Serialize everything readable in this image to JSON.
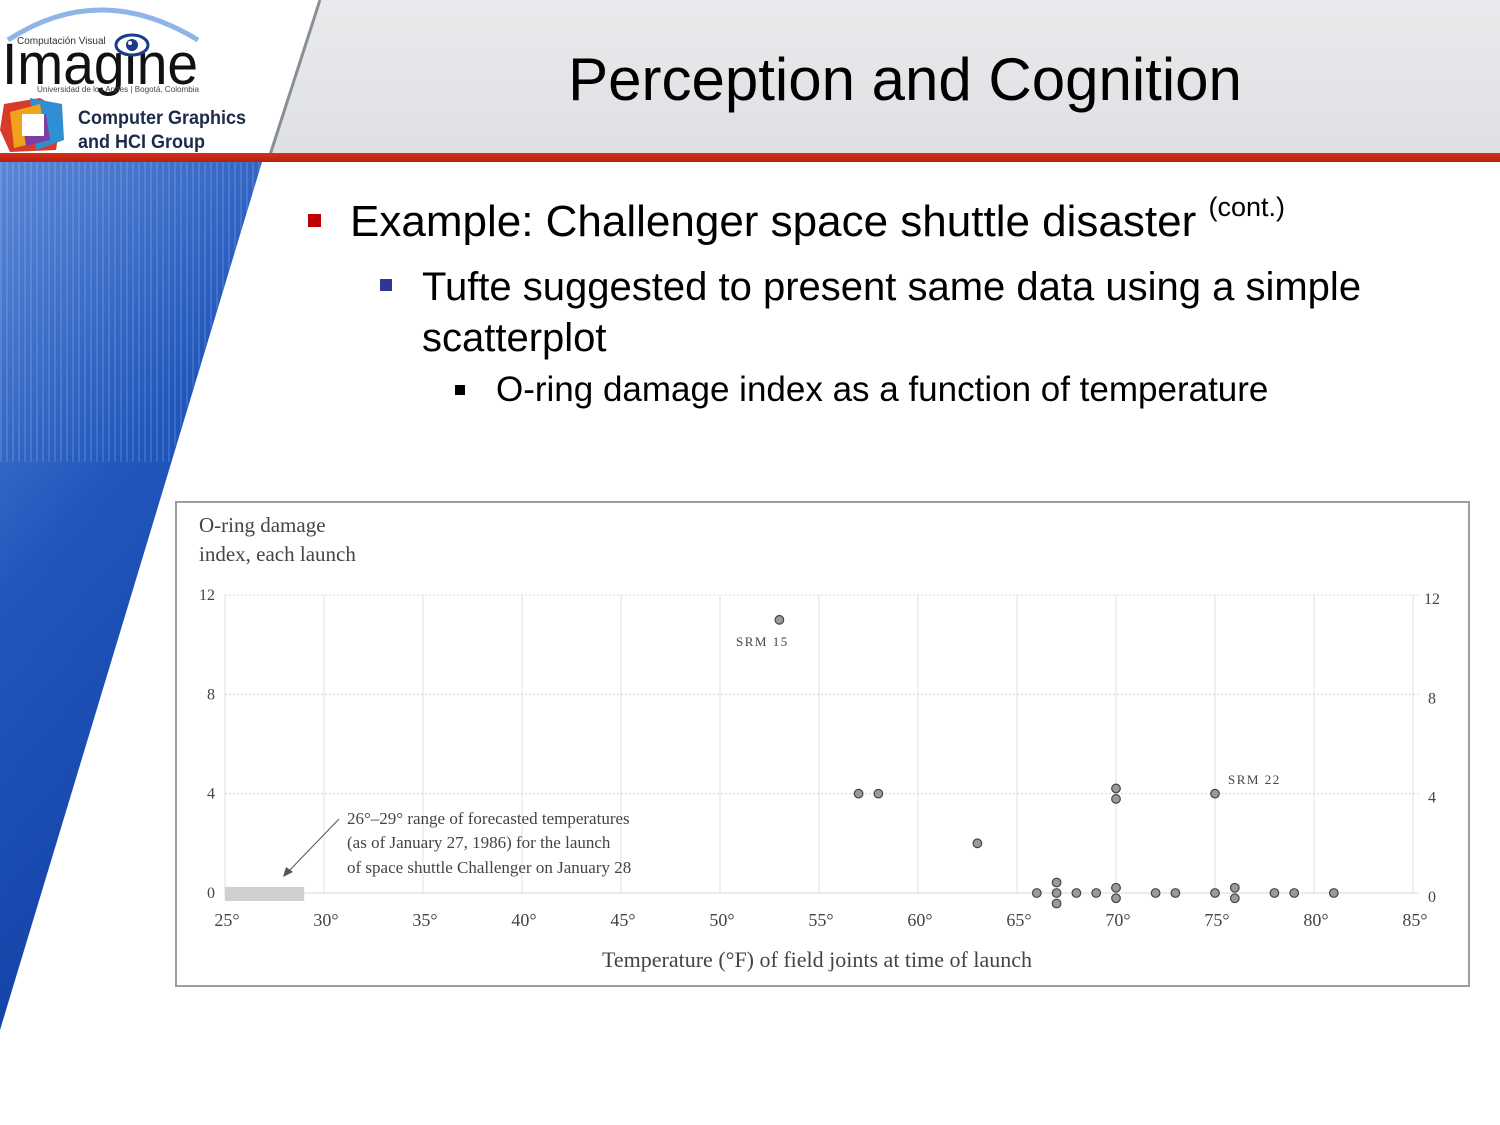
{
  "header": {
    "title": "Perception and Cognition",
    "logo": {
      "tagline": "Computación Visual",
      "wordmark": "Imagine",
      "affiliation": "Universidad de los Andes | Bogotá, Colombia",
      "group_line1": "Computer Graphics",
      "group_line2": "and HCI Group"
    }
  },
  "bullets": {
    "level1": {
      "text": "Example: Challenger space shuttle disaster",
      "suffix": "(cont.)"
    },
    "level2": {
      "text": "Tufte suggested to present same data using a simple scatterplot"
    },
    "level3": {
      "text": "O-ring damage index as a function of temperature"
    }
  },
  "colors": {
    "title_rule": "#c8281a",
    "blue_band": "#1a4db0",
    "bullet1": "#c00000",
    "bullet2": "#2f3696"
  },
  "chart_data": {
    "type": "scatter",
    "ylabel_line1": "O-ring damage",
    "ylabel_line2": "index, each launch",
    "xlabel": "Temperature (°F) of field joints at time of launch",
    "xlim": [
      25,
      85
    ],
    "ylim": [
      0,
      12
    ],
    "x_ticks": [
      "25°",
      "30°",
      "35°",
      "40°",
      "45°",
      "50°",
      "55°",
      "60°",
      "65°",
      "70°",
      "75°",
      "80°",
      "85°"
    ],
    "y_ticks": [
      "0",
      "4",
      "8",
      "12"
    ],
    "y_tick_values": [
      0,
      4,
      8,
      12
    ],
    "x_tick_values": [
      25,
      30,
      35,
      40,
      45,
      50,
      55,
      60,
      65,
      70,
      75,
      80,
      85
    ],
    "grid": true,
    "points": [
      {
        "x": 53,
        "y": 11
      },
      {
        "x": 57,
        "y": 4
      },
      {
        "x": 58,
        "y": 4
      },
      {
        "x": 63,
        "y": 2
      },
      {
        "x": 66,
        "y": 0
      },
      {
        "x": 67,
        "y": 0
      },
      {
        "x": 67,
        "y": 0
      },
      {
        "x": 67,
        "y": 0
      },
      {
        "x": 68,
        "y": 0
      },
      {
        "x": 69,
        "y": 0
      },
      {
        "x": 70,
        "y": 4
      },
      {
        "x": 70,
        "y": 4
      },
      {
        "x": 70,
        "y": 0
      },
      {
        "x": 70,
        "y": 0
      },
      {
        "x": 72,
        "y": 0
      },
      {
        "x": 73,
        "y": 0
      },
      {
        "x": 75,
        "y": 4
      },
      {
        "x": 75,
        "y": 0
      },
      {
        "x": 76,
        "y": 0
      },
      {
        "x": 76,
        "y": 0
      },
      {
        "x": 78,
        "y": 0
      },
      {
        "x": 79,
        "y": 0
      },
      {
        "x": 81,
        "y": 0
      }
    ],
    "labels": {
      "srm15": "SRM 15",
      "srm22": "SRM 22"
    },
    "forecast_range": [
      26,
      29
    ],
    "annotation": [
      "26°–29° range of forecasted temperatures",
      "(as of January 27, 1986) for the launch",
      "of space shuttle Challenger on January 28"
    ]
  }
}
